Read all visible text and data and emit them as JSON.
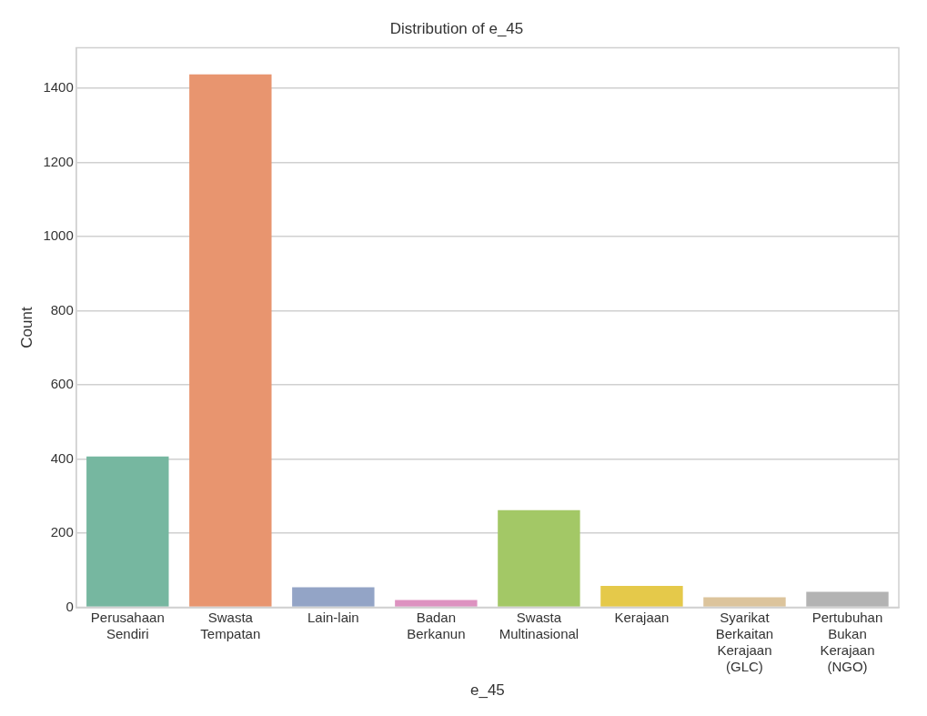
{
  "chart_data": {
    "type": "bar",
    "title": "Distribution of e_45",
    "xlabel": "e_45",
    "ylabel": "Count",
    "categories": [
      "Perusahaan Sendiri",
      "Swasta Tempatan",
      "Lain-lain",
      "Badan Berkanun",
      "Swasta Multinasional",
      "Kerajaan",
      "Syarikat Berkaitan Kerajaan (GLC)",
      "Pertubuhan Bukan Kerajaan (NGO)"
    ],
    "values": [
      407,
      1438,
      54,
      20,
      262,
      58,
      27,
      42
    ],
    "colors": [
      "#76b7a0",
      "#e8956f",
      "#93a4c6",
      "#dd92c0",
      "#a3c866",
      "#e5c94a",
      "#dcc49c",
      "#b3b3b3"
    ],
    "ylim": [
      0,
      1510
    ],
    "yticks": [
      0,
      200,
      400,
      600,
      800,
      1000,
      1200,
      1400
    ],
    "grid": "y",
    "legend": false
  }
}
